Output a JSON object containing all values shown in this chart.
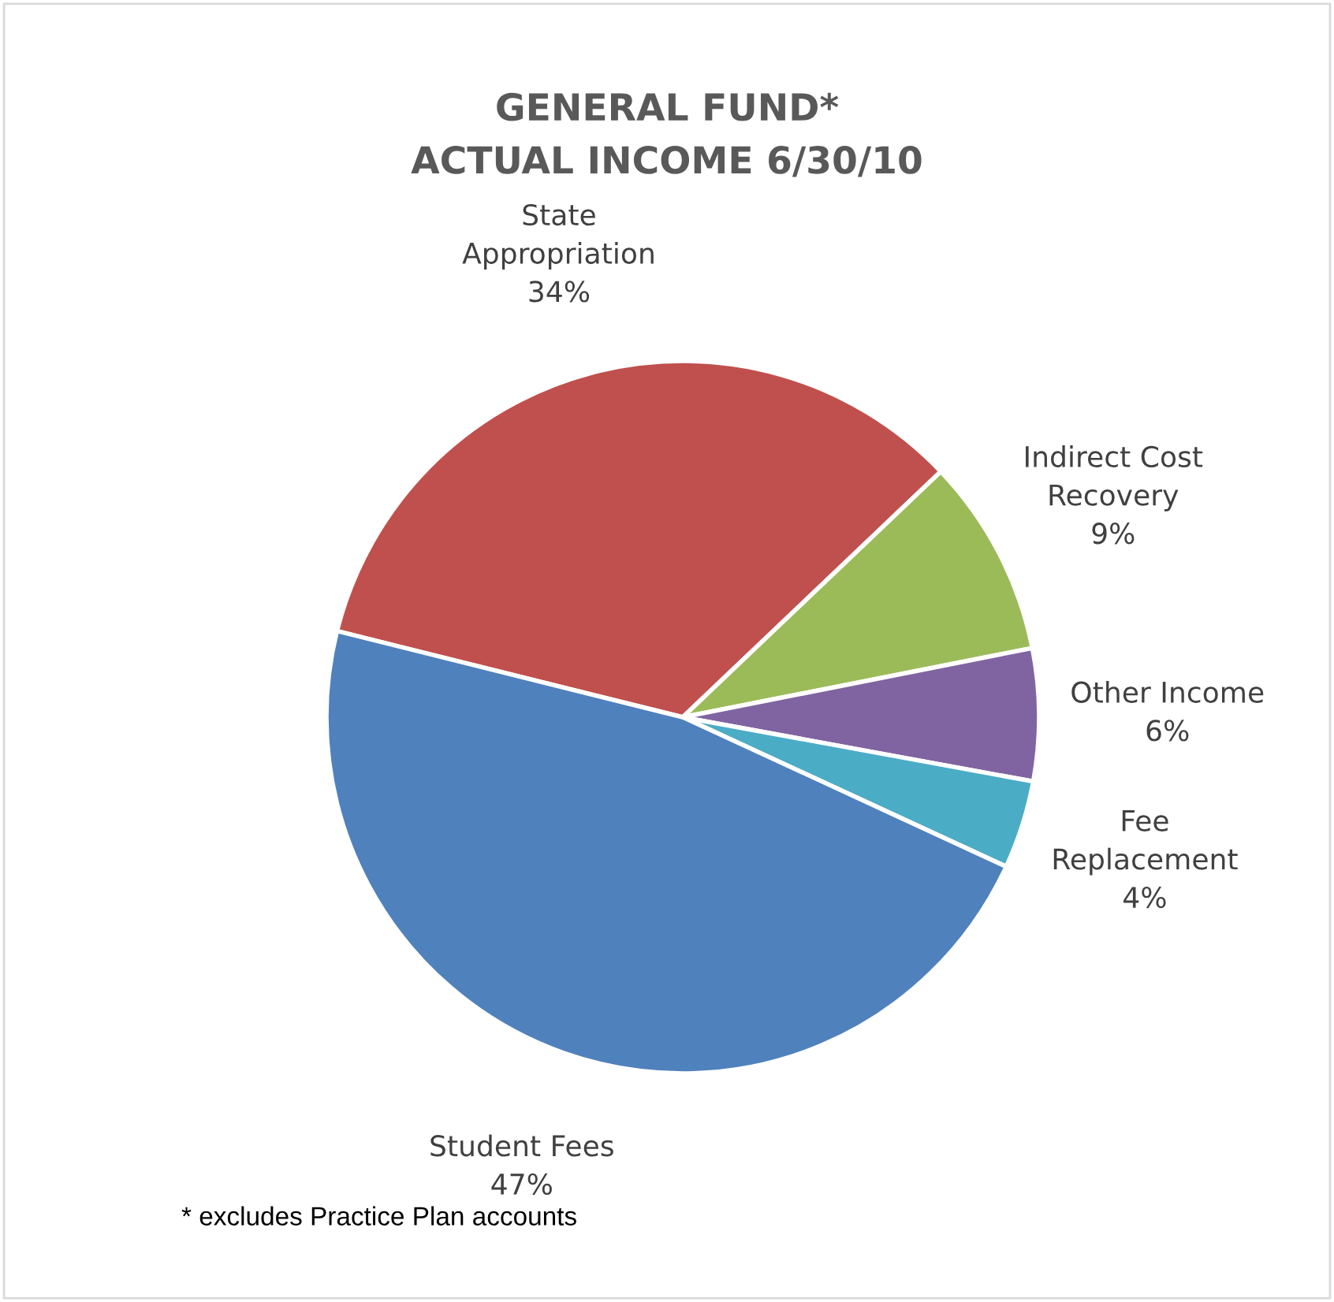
{
  "chart_data": {
    "type": "pie",
    "title": "GENERAL FUND*\nACTUAL INCOME 6/30/10",
    "categories": [
      "State\nAppropriation",
      "Indirect Cost\nRecovery",
      "Other Income",
      "Fee\nReplacement",
      "Student Fees"
    ],
    "values": [
      34,
      9,
      6,
      4,
      47
    ],
    "colors": [
      "#c0504d",
      "#9bbb59",
      "#8064a2",
      "#4bacc6",
      "#4f81bd"
    ],
    "value_labels": [
      "34%",
      "9%",
      "6%",
      "4%",
      "47%"
    ],
    "annotations": [
      "* excludes Practice Plan accounts"
    ]
  }
}
